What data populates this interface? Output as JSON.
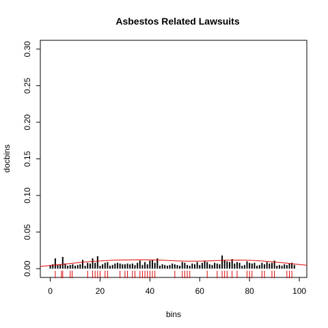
{
  "chart_data": {
    "type": "bar",
    "title": "Asbestos Related Lawsuits",
    "xlabel": "bins",
    "ylabel": "docbins",
    "xlim": [
      -4,
      103
    ],
    "ylim": [
      -0.012,
      0.312
    ],
    "xticks": [
      0,
      20,
      40,
      60,
      80,
      100
    ],
    "yticks": [
      0.0,
      0.05,
      0.1,
      0.15,
      0.2,
      0.25,
      0.3
    ],
    "xtick_labels": [
      "0",
      "20",
      "40",
      "60",
      "80",
      "100"
    ],
    "ytick_labels": [
      "0.00",
      "0.05",
      "0.10",
      "0.15",
      "0.20",
      "0.25",
      "0.30"
    ],
    "grid": false,
    "bars": {
      "color": "#000000",
      "x": [
        0,
        1,
        2,
        3,
        4,
        5,
        6,
        7,
        8,
        9,
        10,
        11,
        12,
        13,
        14,
        15,
        16,
        17,
        18,
        19,
        20,
        21,
        22,
        23,
        24,
        25,
        26,
        27,
        28,
        29,
        30,
        31,
        32,
        33,
        34,
        35,
        36,
        37,
        38,
        39,
        40,
        41,
        42,
        43,
        44,
        45,
        46,
        47,
        48,
        49,
        50,
        51,
        52,
        53,
        54,
        55,
        56,
        57,
        58,
        59,
        60,
        61,
        62,
        63,
        64,
        65,
        66,
        67,
        68,
        69,
        70,
        71,
        72,
        73,
        74,
        75,
        76,
        77,
        78,
        79,
        80,
        81,
        82,
        83,
        84,
        85,
        86,
        87,
        88,
        89,
        90,
        91,
        92,
        93,
        94,
        95,
        96,
        97,
        98
      ],
      "values": [
        0.005,
        0.006,
        0.014,
        0.005,
        0.006,
        0.016,
        0.007,
        0.004,
        0.005,
        0.006,
        0.004,
        0.005,
        0.006,
        0.012,
        0.004,
        0.008,
        0.007,
        0.014,
        0.008,
        0.017,
        0.004,
        0.006,
        0.008,
        0.009,
        0.004,
        0.005,
        0.007,
        0.008,
        0.007,
        0.006,
        0.006,
        0.007,
        0.006,
        0.007,
        0.005,
        0.008,
        0.011,
        0.005,
        0.009,
        0.006,
        0.011,
        0.012,
        0.008,
        0.014,
        0.004,
        0.006,
        0.005,
        0.004,
        0.005,
        0.007,
        0.006,
        0.005,
        0.004,
        0.009,
        0.008,
        0.005,
        0.004,
        0.007,
        0.006,
        0.009,
        0.005,
        0.008,
        0.011,
        0.009,
        0.006,
        0.005,
        0.008,
        0.007,
        0.006,
        0.018,
        0.012,
        0.01,
        0.009,
        0.013,
        0.007,
        0.009,
        0.008,
        0.004,
        0.005,
        0.01,
        0.008,
        0.007,
        0.008,
        0.004,
        0.005,
        0.008,
        0.006,
        0.009,
        0.007,
        0.008,
        0.011,
        0.004,
        0.005,
        0.004,
        0.006,
        0.005,
        0.007,
        0.008,
        0.005
      ]
    },
    "density_curve": {
      "color": "#e00000",
      "x": [
        -4,
        5,
        15,
        25,
        35,
        40,
        45,
        50,
        55,
        60,
        65,
        70,
        75,
        80,
        85,
        90,
        95,
        103
      ],
      "y": [
        0.003,
        0.006,
        0.0095,
        0.0115,
        0.0122,
        0.0121,
        0.0115,
        0.0107,
        0.0102,
        0.0103,
        0.0108,
        0.0114,
        0.0117,
        0.0114,
        0.0105,
        0.009,
        0.0075,
        0.0045
      ]
    },
    "rug": {
      "color": "#e00000",
      "x": [
        2,
        4.5,
        5,
        8,
        8.8,
        15,
        17,
        18,
        19,
        20,
        22,
        23,
        28,
        30,
        31,
        33,
        34,
        36,
        37,
        38,
        39,
        40,
        41,
        42,
        50,
        53,
        54,
        55,
        56,
        63,
        67,
        69,
        70,
        71,
        73,
        75,
        79,
        80,
        81,
        85,
        86,
        89,
        90,
        95,
        96,
        97
      ]
    }
  }
}
